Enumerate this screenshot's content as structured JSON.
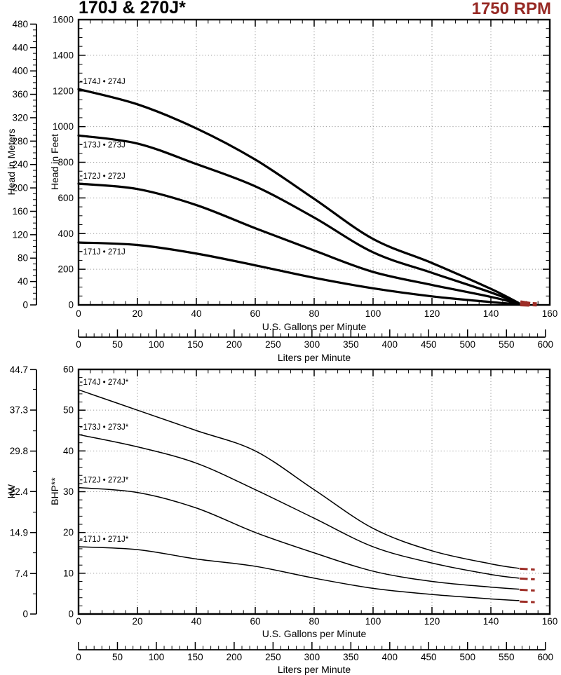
{
  "header": {
    "title": "170J & 270J*",
    "rpm": "1750 RPM"
  },
  "colors": {
    "accent_red": "#972924",
    "end_dash_red": "#9d2d26",
    "curve_black": "#000000",
    "grid_gray": "#999999"
  },
  "chart_data": [
    {
      "id": "head-capacity",
      "type": "line",
      "grid": true,
      "legend": "inline-curve-labels",
      "x_axis": {
        "label": "U.S. Gallons per Minute",
        "min": 0,
        "max": 160,
        "major_step": 20,
        "minor_step": 4,
        "tick_labels": [
          "0",
          "20",
          "40",
          "60",
          "80",
          "100",
          "120",
          "140",
          "160"
        ]
      },
      "y_axis": {
        "label": "Head in Feet",
        "min": 0,
        "max": 1600,
        "major_step": 200,
        "minor_step": 50,
        "tick_labels": [
          "0",
          "200",
          "400",
          "600",
          "800",
          "1000",
          "1200",
          "1400",
          "1600"
        ]
      },
      "y2_ruler": {
        "label": "Head in Meters",
        "min": 0,
        "max": 480,
        "major_step": 40,
        "minor_step": 10,
        "primary_per_unit": 3.28084,
        "tick_labels": [
          "0",
          "40",
          "80",
          "120",
          "160",
          "200",
          "240",
          "280",
          "320",
          "360",
          "400",
          "440",
          "480"
        ]
      },
      "x2_ruler": {
        "label": "Liters per Minute",
        "min": 0,
        "max": 600,
        "major_step": 50,
        "minor_step": 10,
        "primary_per_unit": 0.264172,
        "tick_labels": [
          "0",
          "50",
          "100",
          "150",
          "200",
          "250",
          "300",
          "350",
          "400",
          "450",
          "500",
          "550",
          "600"
        ]
      },
      "x": [
        0,
        20,
        40,
        60,
        80,
        100,
        120,
        140,
        149.5
      ],
      "series": [
        {
          "name": "174J • 274J",
          "label_side": "above",
          "values": [
            1210,
            1125,
            990,
            815,
            595,
            370,
            235,
            90,
            10
          ],
          "ext": [
            [
              150,
              14,
              153.3,
              5
            ],
            [
              154.2,
              4,
              155.6,
              3
            ]
          ]
        },
        {
          "name": "173J • 273J",
          "label_side": "below",
          "values": [
            950,
            905,
            790,
            665,
            490,
            295,
            180,
            70,
            8
          ],
          "ext": [
            [
              150,
              10,
              153.3,
              4
            ]
          ]
        },
        {
          "name": "172J • 272J",
          "label_side": "above",
          "values": [
            680,
            650,
            560,
            430,
            305,
            185,
            112,
            45,
            6
          ],
          "ext": [
            [
              150,
              7,
              153,
              3
            ]
          ]
        },
        {
          "name": "171J • 271J",
          "label_side": "below",
          "values": [
            350,
            336,
            288,
            222,
            152,
            93,
            48,
            16,
            4
          ],
          "ext": [
            [
              150,
              4,
              153,
              2
            ]
          ]
        }
      ]
    },
    {
      "id": "brake-horsepower",
      "type": "line",
      "grid": true,
      "legend": "inline-curve-labels",
      "x_axis": {
        "label": "U.S. Gallons per Minute",
        "min": 0,
        "max": 160,
        "major_step": 20,
        "minor_step": 4,
        "tick_labels": [
          "0",
          "20",
          "40",
          "60",
          "80",
          "100",
          "120",
          "140",
          "160"
        ]
      },
      "y_axis": {
        "label": "BHP**",
        "min": 0,
        "max": 60,
        "major_step": 10,
        "minor_step": 2,
        "tick_labels": [
          "0",
          "10",
          "20",
          "30",
          "40",
          "50",
          "60"
        ]
      },
      "y2_ruler": {
        "label": "kW",
        "primary_per_unit": 1.34102,
        "major_values": [
          0,
          7.4,
          14.9,
          22.4,
          29.8,
          37.3,
          44.7
        ],
        "minor_values": [
          3.7,
          11.2,
          18.6,
          26.1,
          33.5,
          41.1
        ],
        "tick_labels": [
          "0",
          "7.4",
          "14.9",
          "22.4",
          "29.8",
          "37.3",
          "44.7"
        ]
      },
      "x2_ruler": {
        "label": "Liters per Minute",
        "min": 0,
        "max": 600,
        "major_step": 50,
        "minor_step": 10,
        "primary_per_unit": 0.264172,
        "tick_labels": [
          "0",
          "50",
          "100",
          "150",
          "200",
          "250",
          "300",
          "350",
          "400",
          "450",
          "500",
          "550",
          "600"
        ]
      },
      "x": [
        0,
        20,
        40,
        60,
        80,
        100,
        120,
        140,
        149.5
      ],
      "series": [
        {
          "name": "174J • 274J*",
          "label_side": "above",
          "values": [
            55,
            50,
            45,
            40,
            30.5,
            21,
            15.5,
            12.3,
            11.2
          ],
          "ext": [
            [
              149.8,
              11.1,
              152.5,
              11.0
            ],
            [
              153.6,
              10.95,
              154.9,
              10.9
            ]
          ]
        },
        {
          "name": "173J • 273J*",
          "label_side": "above",
          "values": [
            44,
            41,
            37,
            30.5,
            23.5,
            16.5,
            12.5,
            9.7,
            8.8
          ],
          "ext": [
            [
              149.8,
              8.7,
              152.5,
              8.6
            ],
            [
              153.6,
              8.55,
              154.9,
              8.5
            ]
          ]
        },
        {
          "name": "172J • 272J*",
          "label_side": "above",
          "values": [
            31,
            29.8,
            26,
            20,
            15,
            10.5,
            8,
            6.6,
            6.1
          ],
          "ext": [
            [
              149.8,
              5.95,
              152.5,
              5.85
            ],
            [
              153.6,
              5.8,
              154.9,
              5.75
            ]
          ]
        },
        {
          "name": "171J • 271J*",
          "label_side": "above",
          "values": [
            16.5,
            15.8,
            13.5,
            11.7,
            8.8,
            6.3,
            4.8,
            3.7,
            3.3
          ],
          "ext": [
            [
              149.8,
              3.05,
              152.5,
              2.98
            ],
            [
              153.6,
              2.95,
              154.9,
              2.9
            ]
          ]
        }
      ]
    }
  ]
}
